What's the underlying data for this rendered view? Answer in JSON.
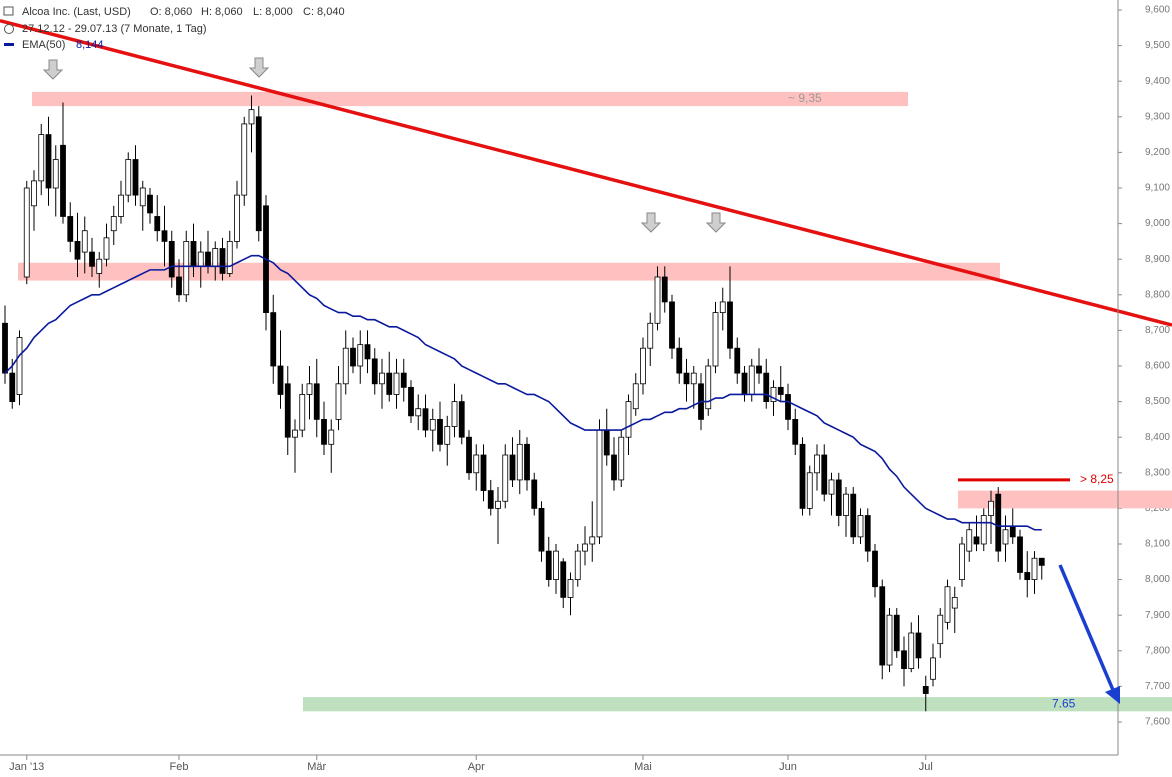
{
  "chart_data": {
    "type": "candlestick",
    "title": "Alcoa Inc. (Last, USD)",
    "quote": [
      "O: 8,060",
      "H: 8,060",
      "L: 8,000",
      "C: 8,040"
    ],
    "period": "27.12.12 - 29.07.13 (7 Monate, 1 Tag)",
    "candle_up_color": "#ffffff",
    "candle_down_color": "#000000",
    "open": [
      8.72,
      8.58,
      8.52,
      8.85,
      9.05,
      9.12,
      9.25,
      9.1,
      9.22,
      9.02,
      8.95,
      8.92,
      8.92,
      8.86,
      8.9,
      8.98,
      9.02,
      9.08,
      9.18,
      9.05,
      9.08,
      9.02,
      8.98,
      8.95,
      8.85,
      8.8,
      8.95,
      8.88,
      8.92,
      8.88,
      8.93,
      8.86,
      8.95,
      9.08,
      9.28,
      9.3,
      9.05,
      8.75,
      8.6,
      8.55,
      8.4,
      8.42,
      8.52,
      8.55,
      8.45,
      8.38,
      8.45,
      8.55,
      8.65,
      8.6,
      8.66,
      8.62,
      8.55,
      8.58,
      8.52,
      8.58,
      8.54,
      8.46,
      8.48,
      8.42,
      8.45,
      8.38,
      8.43,
      8.5,
      8.4,
      8.3,
      8.35,
      8.25,
      8.2,
      8.22,
      8.35,
      8.28,
      8.38,
      8.28,
      8.2,
      8.08,
      8.0,
      8.05,
      7.95,
      8.0,
      8.08,
      8.1,
      8.12,
      8.42,
      8.35,
      8.28,
      8.4,
      8.48,
      8.55,
      8.65,
      8.72,
      8.85,
      8.78,
      8.65,
      8.58,
      8.55,
      8.55,
      8.48,
      8.6,
      8.75,
      8.78,
      8.65,
      8.58,
      8.52,
      8.6,
      8.58,
      8.5,
      8.54,
      8.52,
      8.45,
      8.38,
      8.2,
      8.3,
      8.35,
      8.24,
      8.28,
      8.18,
      8.24,
      8.12,
      8.18,
      8.08,
      7.98,
      7.76,
      7.9,
      7.8,
      7.75,
      7.85,
      7.7,
      7.72,
      7.82,
      7.88,
      7.92,
      8.0,
      8.08,
      8.12,
      8.1,
      8.18,
      8.24,
      8.1,
      8.15,
      8.12,
      8.02,
      8.0,
      8.06
    ],
    "high": [
      8.77,
      8.62,
      8.7,
      9.12,
      9.15,
      9.28,
      9.3,
      9.22,
      9.34,
      9.06,
      9.03,
      9.02,
      8.96,
      8.92,
      9.0,
      9.05,
      9.12,
      9.2,
      9.22,
      9.12,
      9.1,
      9.08,
      9.05,
      8.98,
      8.9,
      8.98,
      9.0,
      8.95,
      8.98,
      8.95,
      8.96,
      8.98,
      9.12,
      9.3,
      9.36,
      9.33,
      9.08,
      8.8,
      8.7,
      8.6,
      8.45,
      8.55,
      8.6,
      8.62,
      8.5,
      8.45,
      8.6,
      8.7,
      8.68,
      8.7,
      8.7,
      8.65,
      8.62,
      8.64,
      8.62,
      8.62,
      8.56,
      8.52,
      8.52,
      8.48,
      8.5,
      8.46,
      8.55,
      8.52,
      8.42,
      8.38,
      8.38,
      8.28,
      8.26,
      8.38,
      8.4,
      8.42,
      8.4,
      8.3,
      8.22,
      8.12,
      8.1,
      8.06,
      8.02,
      8.1,
      8.15,
      8.22,
      8.45,
      8.48,
      8.4,
      8.42,
      8.52,
      8.58,
      8.68,
      8.75,
      8.88,
      8.88,
      8.8,
      8.68,
      8.62,
      8.6,
      8.58,
      8.62,
      8.78,
      8.82,
      8.88,
      8.68,
      8.6,
      8.62,
      8.65,
      8.62,
      8.56,
      8.6,
      8.55,
      8.48,
      8.4,
      8.32,
      8.38,
      8.38,
      8.3,
      8.3,
      8.26,
      8.26,
      8.2,
      8.2,
      8.1,
      8.0,
      7.92,
      7.92,
      7.84,
      7.88,
      7.9,
      7.73,
      7.82,
      7.92,
      8.0,
      7.98,
      8.12,
      8.16,
      8.18,
      8.2,
      8.25,
      8.26,
      8.18,
      8.2,
      8.14,
      8.08,
      8.08,
      8.06
    ],
    "low": [
      8.55,
      8.48,
      8.49,
      8.83,
      8.98,
      9.08,
      9.05,
      9.02,
      9.0,
      8.92,
      8.85,
      8.86,
      8.85,
      8.82,
      8.88,
      8.94,
      9.0,
      9.06,
      9.05,
      8.98,
      9.0,
      8.95,
      8.88,
      8.82,
      8.78,
      8.78,
      8.85,
      8.82,
      8.86,
      8.84,
      8.84,
      8.85,
      8.93,
      9.05,
      9.2,
      8.95,
      8.7,
      8.55,
      8.48,
      8.35,
      8.3,
      8.4,
      8.45,
      8.4,
      8.35,
      8.3,
      8.42,
      8.52,
      8.58,
      8.55,
      8.58,
      8.52,
      8.48,
      8.5,
      8.48,
      8.5,
      8.44,
      8.42,
      8.4,
      8.36,
      8.36,
      8.32,
      8.4,
      8.38,
      8.28,
      8.25,
      8.22,
      8.18,
      8.1,
      8.2,
      8.26,
      8.24,
      8.25,
      8.18,
      8.05,
      7.98,
      7.96,
      7.92,
      7.9,
      7.98,
      8.04,
      8.05,
      8.1,
      8.32,
      8.25,
      8.26,
      8.35,
      8.46,
      8.52,
      8.6,
      8.7,
      8.75,
      8.62,
      8.55,
      8.5,
      8.48,
      8.42,
      8.46,
      8.58,
      8.7,
      8.62,
      8.55,
      8.5,
      8.5,
      8.55,
      8.48,
      8.46,
      8.5,
      8.42,
      8.35,
      8.18,
      8.18,
      8.25,
      8.22,
      8.18,
      8.15,
      8.12,
      8.1,
      8.1,
      8.05,
      7.95,
      7.72,
      7.74,
      7.78,
      7.7,
      7.74,
      7.75,
      7.63,
      7.7,
      7.78,
      7.86,
      7.85,
      7.98,
      8.05,
      8.08,
      8.08,
      8.1,
      8.05,
      8.05,
      8.1,
      8.0,
      7.95,
      7.96,
      8.0
    ],
    "close": [
      8.58,
      8.5,
      8.68,
      9.1,
      9.12,
      9.25,
      9.1,
      9.18,
      9.02,
      8.95,
      8.9,
      8.98,
      8.88,
      8.9,
      8.96,
      9.02,
      9.08,
      9.18,
      9.08,
      9.1,
      9.03,
      8.98,
      8.95,
      8.85,
      8.8,
      8.95,
      8.88,
      8.92,
      8.88,
      8.93,
      8.86,
      8.95,
      9.08,
      9.28,
      9.32,
      8.98,
      8.75,
      8.6,
      8.52,
      8.4,
      8.42,
      8.52,
      8.55,
      8.45,
      8.38,
      8.42,
      8.55,
      8.65,
      8.6,
      8.66,
      8.62,
      8.55,
      8.58,
      8.52,
      8.58,
      8.54,
      8.46,
      8.48,
      8.42,
      8.45,
      8.38,
      8.43,
      8.5,
      8.4,
      8.3,
      8.35,
      8.25,
      8.2,
      8.22,
      8.35,
      8.28,
      8.38,
      8.28,
      8.2,
      8.08,
      8.0,
      8.08,
      7.95,
      8.0,
      8.08,
      8.1,
      8.12,
      8.42,
      8.35,
      8.28,
      8.4,
      8.5,
      8.55,
      8.65,
      8.72,
      8.85,
      8.78,
      8.65,
      8.58,
      8.55,
      8.58,
      8.45,
      8.6,
      8.75,
      8.78,
      8.65,
      8.58,
      8.52,
      8.6,
      8.58,
      8.5,
      8.54,
      8.52,
      8.45,
      8.38,
      8.2,
      8.3,
      8.35,
      8.24,
      8.28,
      8.18,
      8.24,
      8.12,
      8.18,
      8.08,
      7.98,
      7.76,
      7.9,
      7.8,
      7.75,
      7.85,
      7.78,
      7.68,
      7.78,
      7.9,
      7.98,
      7.95,
      8.1,
      8.14,
      8.1,
      8.18,
      8.22,
      8.08,
      8.14,
      8.12,
      8.02,
      8.0,
      8.06,
      8.04
    ],
    "series": [
      {
        "name": "EMA(50)",
        "color": "#0a1a9c",
        "last_label": "8,144",
        "values": [
          8.58,
          8.6,
          8.63,
          8.65,
          8.68,
          8.7,
          8.72,
          8.73,
          8.75,
          8.77,
          8.78,
          8.79,
          8.8,
          8.8,
          8.81,
          8.82,
          8.83,
          8.84,
          8.85,
          8.86,
          8.87,
          8.87,
          8.87,
          8.88,
          8.88,
          8.88,
          8.88,
          8.88,
          8.88,
          8.88,
          8.88,
          8.88,
          8.89,
          8.9,
          8.91,
          8.91,
          8.9,
          8.89,
          8.87,
          8.86,
          8.84,
          8.82,
          8.8,
          8.79,
          8.77,
          8.76,
          8.75,
          8.75,
          8.74,
          8.74,
          8.73,
          8.73,
          8.72,
          8.71,
          8.71,
          8.7,
          8.69,
          8.68,
          8.66,
          8.65,
          8.64,
          8.63,
          8.62,
          8.6,
          8.59,
          8.58,
          8.57,
          8.56,
          8.55,
          8.55,
          8.54,
          8.53,
          8.52,
          8.52,
          8.51,
          8.5,
          8.48,
          8.46,
          8.44,
          8.43,
          8.42,
          8.42,
          8.42,
          8.42,
          8.42,
          8.42,
          8.43,
          8.44,
          8.45,
          8.45,
          8.46,
          8.47,
          8.47,
          8.48,
          8.48,
          8.49,
          8.5,
          8.5,
          8.51,
          8.51,
          8.52,
          8.52,
          8.52,
          8.52,
          8.52,
          8.52,
          8.51,
          8.5,
          8.5,
          8.49,
          8.48,
          8.47,
          8.46,
          8.44,
          8.43,
          8.42,
          8.41,
          8.4,
          8.38,
          8.37,
          8.36,
          8.34,
          8.31,
          8.29,
          8.26,
          8.24,
          8.22,
          8.2,
          8.19,
          8.18,
          8.17,
          8.17,
          8.16,
          8.16,
          8.16,
          8.16,
          8.16,
          8.15,
          8.15,
          8.15,
          8.15,
          8.15,
          8.14,
          8.14
        ]
      }
    ],
    "xticks": [
      {
        "value": 3,
        "label": "Jan '13"
      },
      {
        "value": 24,
        "label": "Feb"
      },
      {
        "value": 43,
        "label": "Mär"
      },
      {
        "value": 65,
        "label": "Apr"
      },
      {
        "value": 88,
        "label": "Mai"
      },
      {
        "value": 108,
        "label": "Jun"
      },
      {
        "value": 127,
        "label": "Jul"
      }
    ],
    "ylim": [
      7.6,
      9.6
    ],
    "yticks": [
      {
        "value": 9.6,
        "label": "9,600"
      },
      {
        "value": 9.5,
        "label": "9,500"
      },
      {
        "value": 9.4,
        "label": "9,400"
      },
      {
        "value": 9.3,
        "label": "9,300"
      },
      {
        "value": 9.2,
        "label": "9,200"
      },
      {
        "value": 9.1,
        "label": "9,100"
      },
      {
        "value": 9.0,
        "label": "9,000"
      },
      {
        "value": 8.9,
        "label": "8,900"
      },
      {
        "value": 8.8,
        "label": "8,800"
      },
      {
        "value": 8.7,
        "label": "8,700"
      },
      {
        "value": 8.6,
        "label": "8,600"
      },
      {
        "value": 8.5,
        "label": "8,500"
      },
      {
        "value": 8.4,
        "label": "8,400"
      },
      {
        "value": 8.3,
        "label": "8,300"
      },
      {
        "value": 8.2,
        "label": "8,200"
      },
      {
        "value": 8.1,
        "label": "8,100"
      },
      {
        "value": 8.0,
        "label": "8,000"
      },
      {
        "value": 7.9,
        "label": "7,900"
      },
      {
        "value": 7.8,
        "label": "7,800"
      },
      {
        "value": 7.7,
        "label": "7,700"
      },
      {
        "value": 7.6,
        "label": "7,600"
      }
    ],
    "zones": [
      {
        "from": 9.33,
        "to": 9.37,
        "color": "#ffc0c0"
      },
      {
        "from": 8.84,
        "to": 8.89,
        "color": "#ffc0c0"
      },
      {
        "from": 8.2,
        "to": 8.25,
        "color": "#ffc0c0"
      },
      {
        "from": 7.63,
        "to": 7.67,
        "color": "#bfe0bf"
      }
    ],
    "levels": [
      {
        "value": 8.28,
        "color": "#e00000"
      }
    ],
    "trendline": {
      "start": 9.57,
      "end": 8.715,
      "color": "#e51010"
    },
    "annotations": [
      {
        "text": "~ 9,35",
        "value": 9.35,
        "color": "#999999"
      },
      {
        "text": "> 8,25",
        "value": 8.28,
        "color": "#e00000"
      },
      {
        "text": "7.65",
        "value": 7.65,
        "color": "#1a3fd0"
      }
    ]
  }
}
